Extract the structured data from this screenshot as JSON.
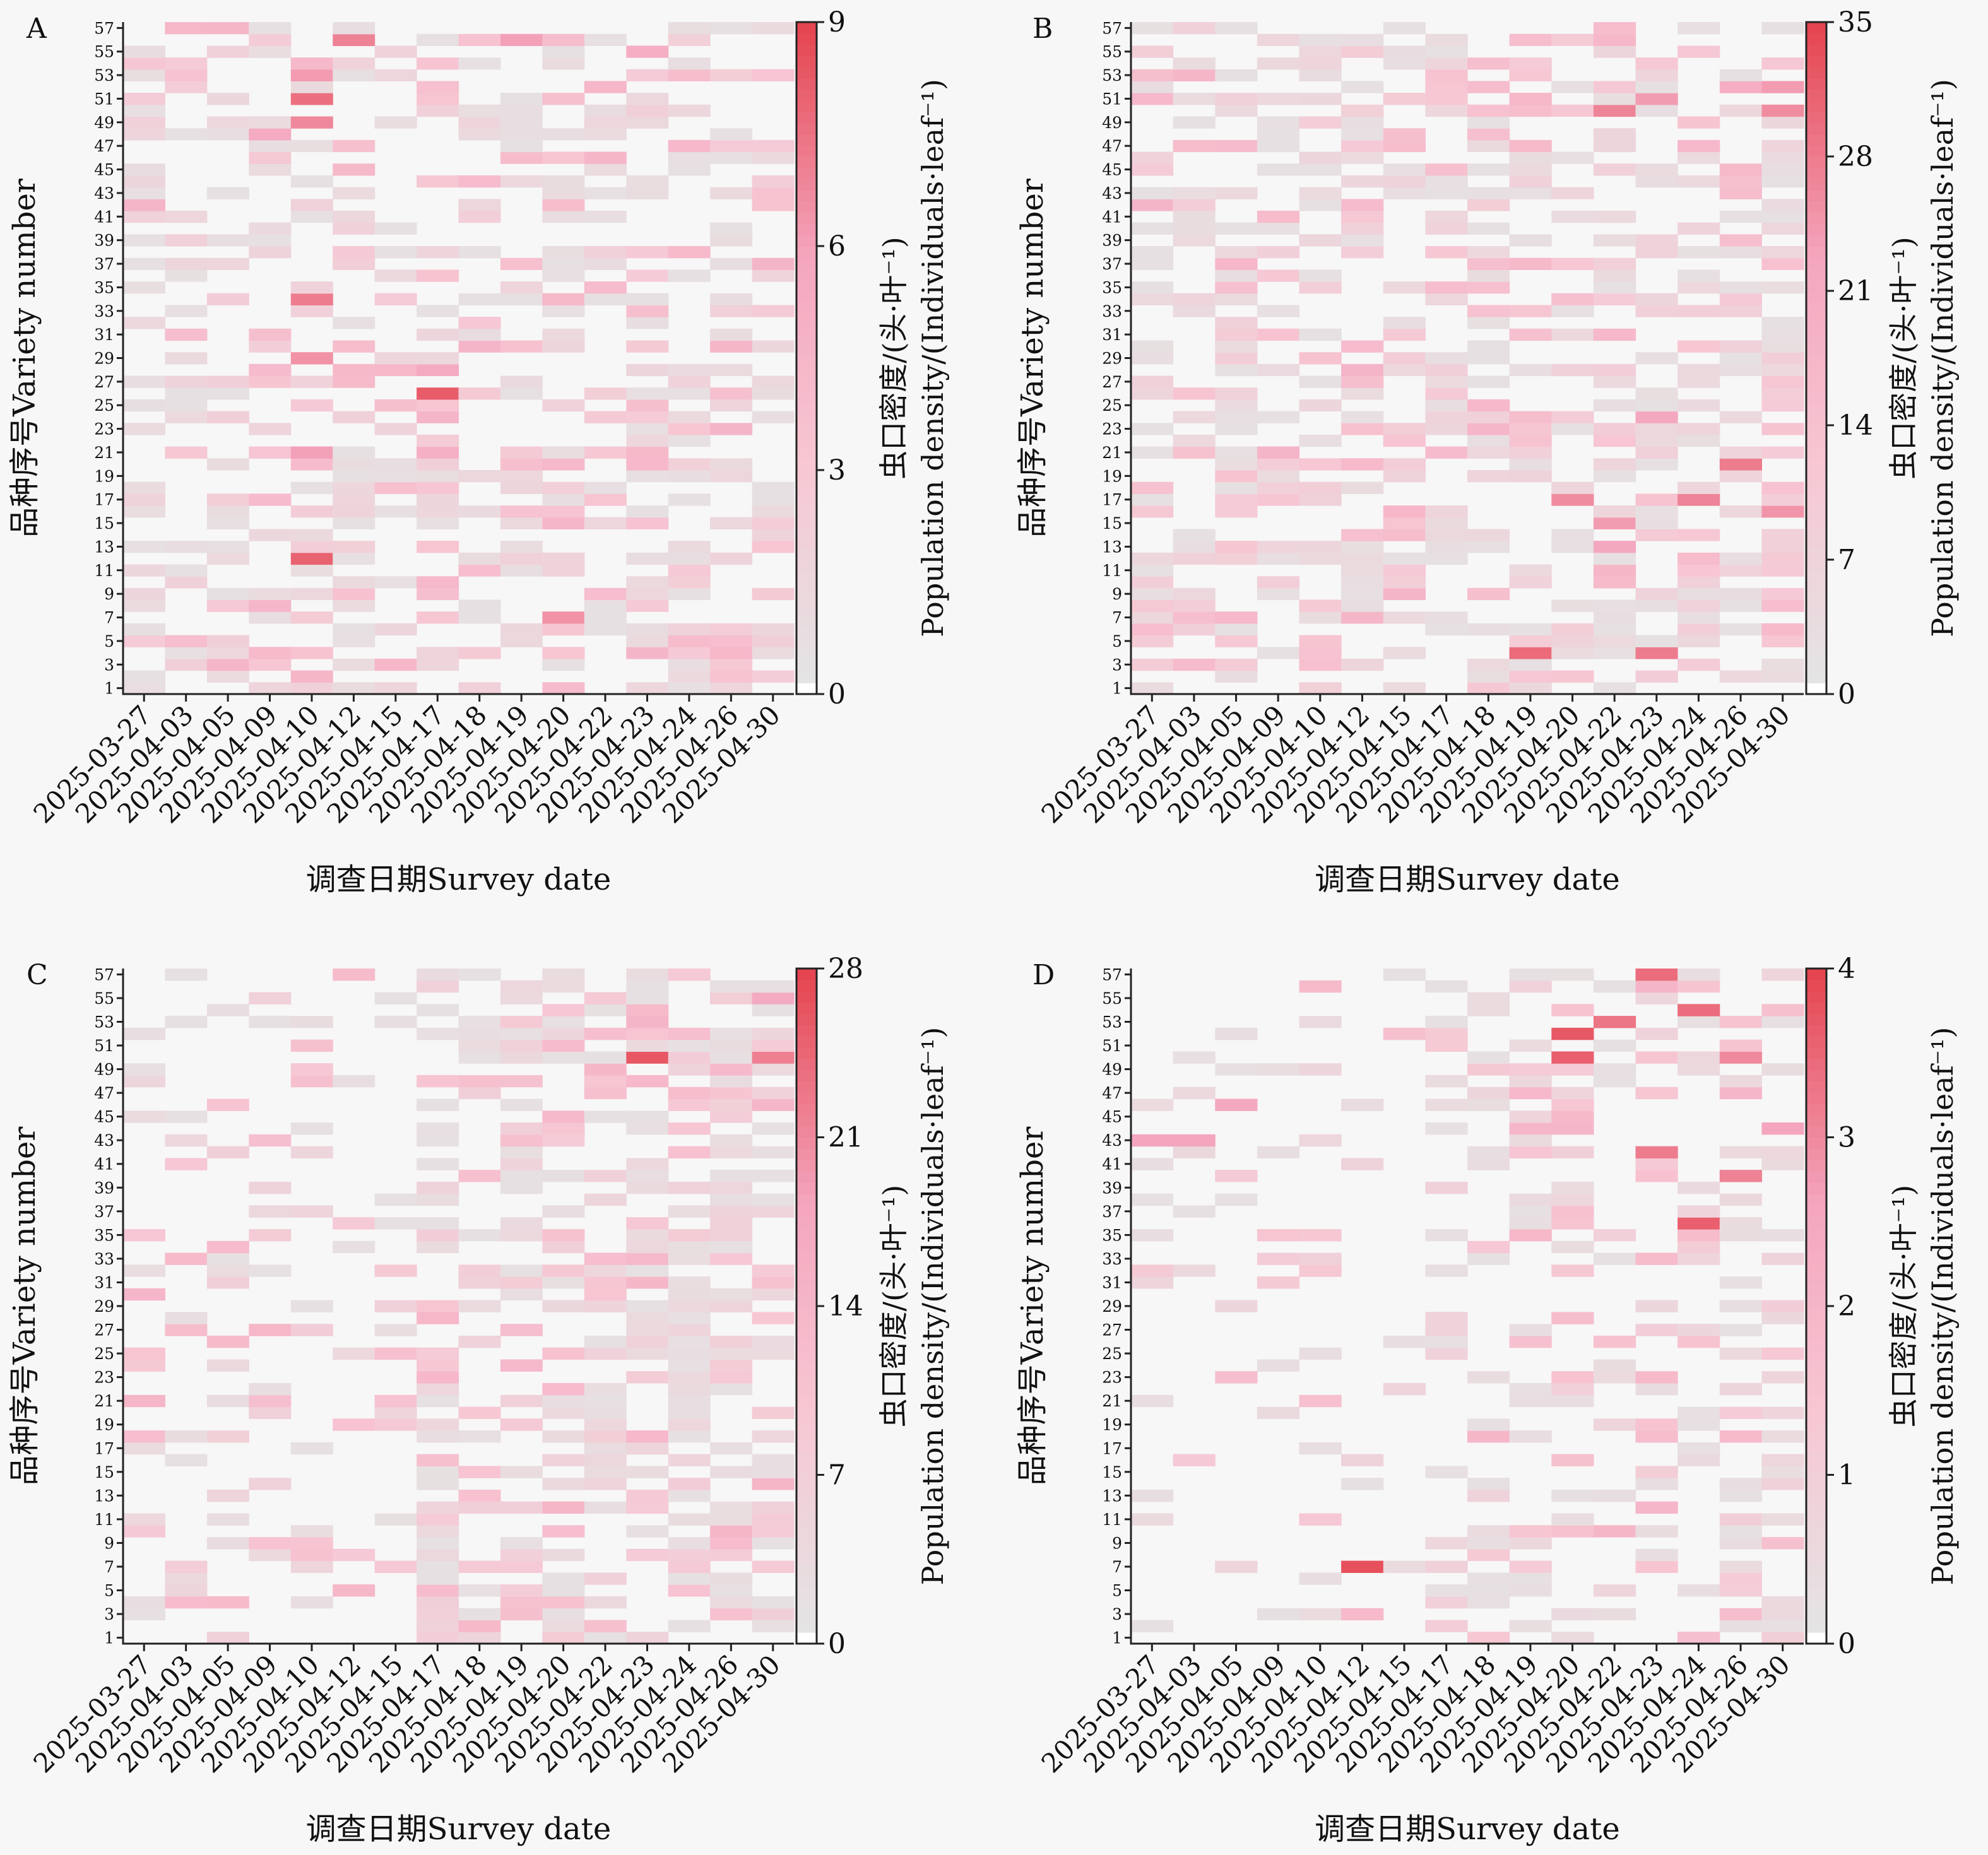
{
  "figure": {
    "xlabel": "调查日期Survey date",
    "ylabel": "品种序号Variety number",
    "colorbar_label_cn": "虫口密度/(头·叶⁻¹)",
    "colorbar_label_en": "Population density/(Individuals·leaf⁻¹)",
    "colors": {
      "background": "#f7f7f7",
      "zero": "#f7f7f7",
      "low": "#e4e4e4",
      "mid": "#f4a6be",
      "high": "#e4434d"
    }
  },
  "chart_data": [
    {
      "panel": "A",
      "type": "heatmap",
      "x": [
        "2025-03-27",
        "2025-04-03",
        "2025-04-05",
        "2025-04-09",
        "2025-04-10",
        "2025-04-12",
        "2025-04-15",
        "2025-04-17",
        "2025-04-18",
        "2025-04-19",
        "2025-04-20",
        "2025-04-22",
        "2025-04-23",
        "2025-04-24",
        "2025-04-26",
        "2025-04-30"
      ],
      "y_ticks": [
        1,
        3,
        5,
        7,
        9,
        11,
        13,
        15,
        17,
        19,
        21,
        23,
        25,
        27,
        29,
        31,
        33,
        35,
        37,
        39,
        41,
        43,
        45,
        47,
        49,
        51,
        53,
        55,
        57
      ],
      "y_range": [
        1,
        57
      ],
      "colorbar_ticks": [
        0,
        3,
        6,
        9
      ],
      "colorbar_range": [
        0,
        9
      ],
      "hotspots": [
        {
          "date": "2025-04-10",
          "variety": 51,
          "value": 7.6
        },
        {
          "date": "2025-04-10",
          "variety": 49,
          "value": 6.8
        },
        {
          "date": "2025-04-10",
          "variety": 53,
          "value": 6.2
        },
        {
          "date": "2025-04-10",
          "variety": 34,
          "value": 7.2
        },
        {
          "date": "2025-04-10",
          "variety": 29,
          "value": 6.5
        },
        {
          "date": "2025-04-10",
          "variety": 21,
          "value": 6.0
        },
        {
          "date": "2025-04-10",
          "variety": 12,
          "value": 8.0
        },
        {
          "date": "2025-04-12",
          "variety": 56,
          "value": 7.0
        },
        {
          "date": "2025-04-17",
          "variety": 26,
          "value": 8.2
        },
        {
          "date": "2025-04-17",
          "variety": 28,
          "value": 5.5
        },
        {
          "date": "2025-04-17",
          "variety": 21,
          "value": 5.0
        },
        {
          "date": "2025-04-20",
          "variety": 7,
          "value": 6.5
        },
        {
          "date": "2025-04-09",
          "variety": 48,
          "value": 5.4
        },
        {
          "date": "2025-04-19",
          "variety": 56,
          "value": 6.0
        },
        {
          "date": "2025-04-23",
          "variety": 55,
          "value": 5.2
        }
      ]
    },
    {
      "panel": "B",
      "type": "heatmap",
      "x": [
        "2025-03-27",
        "2025-04-03",
        "2025-04-05",
        "2025-04-09",
        "2025-04-10",
        "2025-04-12",
        "2025-04-15",
        "2025-04-17",
        "2025-04-18",
        "2025-04-19",
        "2025-04-20",
        "2025-04-22",
        "2025-04-23",
        "2025-04-24",
        "2025-04-26",
        "2025-04-30"
      ],
      "y_ticks": [
        1,
        3,
        5,
        7,
        9,
        11,
        13,
        15,
        17,
        19,
        21,
        23,
        25,
        27,
        29,
        31,
        33,
        35,
        37,
        39,
        41,
        43,
        45,
        47,
        49,
        51,
        53,
        55,
        57
      ],
      "y_range": [
        1,
        57
      ],
      "colorbar_ticks": [
        0,
        7,
        14,
        21,
        28,
        35
      ],
      "colorbar_range": [
        0,
        35
      ],
      "hotspots": [
        {
          "date": "2025-04-19",
          "variety": 4,
          "value": 30
        },
        {
          "date": "2025-04-23",
          "variety": 4,
          "value": 28
        },
        {
          "date": "2025-04-20",
          "variety": 17,
          "value": 26
        },
        {
          "date": "2025-04-24",
          "variety": 17,
          "value": 27
        },
        {
          "date": "2025-04-26",
          "variety": 20,
          "value": 28
        },
        {
          "date": "2025-04-30",
          "variety": 16,
          "value": 25
        },
        {
          "date": "2025-04-22",
          "variety": 50,
          "value": 27
        },
        {
          "date": "2025-04-30",
          "variety": 50,
          "value": 26
        },
        {
          "date": "2025-04-23",
          "variety": 51,
          "value": 24
        },
        {
          "date": "2025-04-22",
          "variety": 15,
          "value": 24
        },
        {
          "date": "2025-04-23",
          "variety": 24,
          "value": 22
        },
        {
          "date": "2025-04-30",
          "variety": 52,
          "value": 24
        },
        {
          "date": "2025-04-22",
          "variety": 13,
          "value": 22
        },
        {
          "date": "2025-04-26",
          "variety": 52,
          "value": 20
        }
      ]
    },
    {
      "panel": "C",
      "type": "heatmap",
      "x": [
        "2025-03-27",
        "2025-04-03",
        "2025-04-05",
        "2025-04-09",
        "2025-04-10",
        "2025-04-12",
        "2025-04-15",
        "2025-04-17",
        "2025-04-18",
        "2025-04-19",
        "2025-04-20",
        "2025-04-22",
        "2025-04-23",
        "2025-04-24",
        "2025-04-26",
        "2025-04-30"
      ],
      "y_ticks": [
        1,
        3,
        5,
        7,
        9,
        11,
        13,
        15,
        17,
        19,
        21,
        23,
        25,
        27,
        29,
        31,
        33,
        35,
        37,
        39,
        41,
        43,
        45,
        47,
        49,
        51,
        53,
        55,
        57
      ],
      "y_range": [
        1,
        57
      ],
      "colorbar_ticks": [
        0,
        7,
        14,
        21,
        28
      ],
      "colorbar_range": [
        0,
        28
      ],
      "hotspots": [
        {
          "date": "2025-04-23",
          "variety": 50,
          "value": 26
        },
        {
          "date": "2025-04-30",
          "variety": 50,
          "value": 22
        },
        {
          "date": "2025-04-30",
          "variety": 55,
          "value": 17
        },
        {
          "date": "2025-04-23",
          "variety": 54,
          "value": 13
        },
        {
          "date": "2025-04-22",
          "variety": 52,
          "value": 12
        },
        {
          "date": "2025-04-24",
          "variety": 52,
          "value": 12
        }
      ]
    },
    {
      "panel": "D",
      "type": "heatmap",
      "x": [
        "2025-03-27",
        "2025-04-03",
        "2025-04-05",
        "2025-04-09",
        "2025-04-10",
        "2025-04-12",
        "2025-04-15",
        "2025-04-17",
        "2025-04-18",
        "2025-04-19",
        "2025-04-20",
        "2025-04-22",
        "2025-04-23",
        "2025-04-24",
        "2025-04-26",
        "2025-04-30"
      ],
      "y_ticks": [
        1,
        3,
        5,
        7,
        9,
        11,
        13,
        15,
        17,
        19,
        21,
        23,
        25,
        27,
        29,
        31,
        33,
        35,
        37,
        39,
        41,
        43,
        45,
        47,
        49,
        51,
        53,
        55,
        57
      ],
      "y_range": [
        1,
        57
      ],
      "colorbar_ticks": [
        0,
        1,
        2,
        3,
        4
      ],
      "colorbar_range": [
        0,
        4
      ],
      "hotspots": [
        {
          "date": "2025-04-12",
          "variety": 7,
          "value": 3.8
        },
        {
          "date": "2025-04-20",
          "variety": 52,
          "value": 3.7
        },
        {
          "date": "2025-04-20",
          "variety": 50,
          "value": 3.6
        },
        {
          "date": "2025-04-24",
          "variety": 36,
          "value": 3.6
        },
        {
          "date": "2025-04-24",
          "variety": 54,
          "value": 3.4
        },
        {
          "date": "2025-04-23",
          "variety": 57,
          "value": 3.4
        },
        {
          "date": "2025-04-22",
          "variety": 53,
          "value": 3.3
        },
        {
          "date": "2025-04-26",
          "variety": 40,
          "value": 3.1
        },
        {
          "date": "2025-04-23",
          "variety": 42,
          "value": 3.2
        },
        {
          "date": "2025-04-26",
          "variety": 50,
          "value": 3.0
        },
        {
          "date": "2025-04-30",
          "variety": 44,
          "value": 2.6
        },
        {
          "date": "2025-04-05",
          "variety": 46,
          "value": 2.5
        },
        {
          "date": "2025-03-27",
          "variety": 43,
          "value": 2.6
        },
        {
          "date": "2025-04-03",
          "variety": 43,
          "value": 2.6
        }
      ]
    }
  ]
}
